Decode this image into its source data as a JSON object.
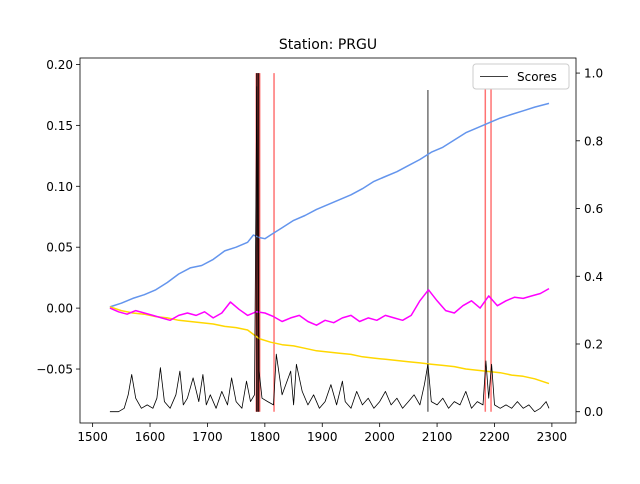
{
  "chart_data": {
    "type": "line",
    "title": "Station: PRGU",
    "xlabel": "",
    "ylabel": "",
    "xlim": [
      1478,
      2342
    ],
    "ylim": [
      -0.0943,
      0.2053
    ],
    "y2lim": [
      -0.0333,
      1.0445
    ],
    "x_ticks": [
      1500,
      1600,
      1700,
      1800,
      1900,
      2000,
      2100,
      2200,
      2300
    ],
    "x_tick_labels": [
      "1500",
      "1600",
      "1700",
      "1800",
      "1900",
      "2000",
      "2100",
      "2200",
      "2300"
    ],
    "y_ticks": [
      -0.05,
      0.0,
      0.05,
      0.1,
      0.15,
      0.2
    ],
    "y_tick_labels": [
      "−0.05",
      "0.00",
      "0.05",
      "0.10",
      "0.15",
      "0.20"
    ],
    "y2_ticks": [
      0.0,
      0.2,
      0.4,
      0.6,
      0.8,
      1.0
    ],
    "y2_tick_labels": [
      "0.0",
      "0.2",
      "0.4",
      "0.6",
      "0.8",
      "1.0"
    ],
    "grid": false,
    "legend": {
      "placement": "top-right",
      "entries": [
        {
          "label": "Scores",
          "color": "#000000"
        }
      ]
    },
    "series": [
      {
        "color": "#6495ed",
        "axis": "left",
        "x": [
          1530,
          1550,
          1570,
          1590,
          1610,
          1630,
          1650,
          1670,
          1690,
          1710,
          1730,
          1750,
          1770,
          1780,
          1790,
          1800,
          1810,
          1830,
          1850,
          1870,
          1890,
          1910,
          1930,
          1950,
          1970,
          1990,
          2010,
          2030,
          2050,
          2070,
          2090,
          2110,
          2130,
          2150,
          2170,
          2190,
          2210,
          2230,
          2250,
          2270,
          2295
        ],
        "y": [
          0.001,
          0.004,
          0.008,
          0.011,
          0.015,
          0.021,
          0.028,
          0.033,
          0.035,
          0.04,
          0.047,
          0.05,
          0.054,
          0.06,
          0.058,
          0.057,
          0.06,
          0.066,
          0.072,
          0.076,
          0.081,
          0.085,
          0.089,
          0.093,
          0.098,
          0.104,
          0.108,
          0.112,
          0.117,
          0.122,
          0.128,
          0.132,
          0.138,
          0.144,
          0.148,
          0.152,
          0.156,
          0.159,
          0.162,
          0.165,
          0.168
        ]
      },
      {
        "color": "#ffd700",
        "axis": "left",
        "x": [
          1530,
          1550,
          1570,
          1590,
          1610,
          1630,
          1650,
          1670,
          1690,
          1710,
          1730,
          1750,
          1770,
          1790,
          1810,
          1830,
          1850,
          1870,
          1890,
          1910,
          1930,
          1950,
          1970,
          1990,
          2010,
          2030,
          2050,
          2070,
          2090,
          2110,
          2130,
          2150,
          2170,
          2190,
          2210,
          2230,
          2250,
          2270,
          2295
        ],
        "y": [
          0.001,
          -0.002,
          -0.004,
          -0.005,
          -0.007,
          -0.008,
          -0.01,
          -0.011,
          -0.012,
          -0.013,
          -0.015,
          -0.016,
          -0.018,
          -0.025,
          -0.028,
          -0.03,
          -0.031,
          -0.033,
          -0.035,
          -0.036,
          -0.037,
          -0.038,
          -0.04,
          -0.041,
          -0.042,
          -0.043,
          -0.044,
          -0.045,
          -0.046,
          -0.047,
          -0.048,
          -0.05,
          -0.051,
          -0.052,
          -0.053,
          -0.055,
          -0.056,
          -0.058,
          -0.062
        ]
      },
      {
        "color": "#ff00ff",
        "axis": "left",
        "x": [
          1530,
          1545,
          1560,
          1575,
          1590,
          1605,
          1620,
          1635,
          1650,
          1665,
          1680,
          1695,
          1710,
          1725,
          1740,
          1755,
          1770,
          1785,
          1800,
          1815,
          1830,
          1845,
          1860,
          1875,
          1890,
          1905,
          1920,
          1935,
          1950,
          1965,
          1980,
          1995,
          2010,
          2025,
          2040,
          2055,
          2070,
          2085,
          2100,
          2115,
          2130,
          2145,
          2160,
          2175,
          2190,
          2205,
          2220,
          2235,
          2250,
          2265,
          2280,
          2295
        ],
        "y": [
          0.0,
          -0.003,
          -0.005,
          -0.002,
          -0.004,
          -0.006,
          -0.008,
          -0.01,
          -0.006,
          -0.004,
          -0.006,
          -0.003,
          -0.008,
          -0.004,
          0.005,
          -0.001,
          -0.006,
          -0.003,
          -0.004,
          -0.007,
          -0.011,
          -0.008,
          -0.006,
          -0.011,
          -0.014,
          -0.01,
          -0.012,
          -0.008,
          -0.006,
          -0.011,
          -0.008,
          -0.01,
          -0.006,
          -0.008,
          -0.01,
          -0.006,
          0.006,
          0.015,
          0.006,
          -0.002,
          -0.004,
          0.002,
          0.006,
          0.0,
          0.01,
          0.002,
          0.006,
          0.009,
          0.008,
          0.01,
          0.012,
          0.016
        ]
      },
      {
        "name": "Scores",
        "color": "#000000",
        "axis": "right",
        "x": [
          1530,
          1545,
          1555,
          1562,
          1568,
          1575,
          1585,
          1595,
          1605,
          1612,
          1618,
          1625,
          1635,
          1645,
          1652,
          1658,
          1665,
          1675,
          1685,
          1692,
          1698,
          1705,
          1715,
          1725,
          1735,
          1742,
          1750,
          1760,
          1768,
          1775,
          1782,
          1786,
          1790,
          1795,
          1805,
          1815,
          1820,
          1830,
          1845,
          1850,
          1855,
          1865,
          1875,
          1885,
          1895,
          1905,
          1915,
          1925,
          1935,
          1940,
          1950,
          1960,
          1970,
          1980,
          1990,
          2000,
          2010,
          2020,
          2030,
          2040,
          2050,
          2060,
          2070,
          2078,
          2084,
          2090,
          2100,
          2110,
          2120,
          2130,
          2140,
          2150,
          2160,
          2170,
          2180,
          2185,
          2190,
          2195,
          2200,
          2210,
          2220,
          2230,
          2240,
          2250,
          2260,
          2270,
          2280,
          2290,
          2295
        ],
        "y": [
          0.0,
          0.0,
          0.01,
          0.05,
          0.11,
          0.04,
          0.01,
          0.02,
          0.01,
          0.04,
          0.13,
          0.03,
          0.01,
          0.05,
          0.12,
          0.02,
          0.04,
          0.1,
          0.03,
          0.11,
          0.02,
          0.05,
          0.01,
          0.06,
          0.02,
          0.1,
          0.03,
          0.01,
          0.09,
          0.03,
          0.05,
          0.96,
          0.12,
          0.04,
          0.03,
          0.02,
          0.17,
          0.05,
          0.12,
          0.02,
          0.14,
          0.06,
          0.02,
          0.05,
          0.01,
          0.03,
          0.08,
          0.02,
          0.09,
          0.03,
          0.01,
          0.06,
          0.02,
          0.04,
          0.01,
          0.03,
          0.06,
          0.02,
          0.04,
          0.01,
          0.03,
          0.05,
          0.02,
          0.08,
          0.14,
          0.03,
          0.02,
          0.04,
          0.01,
          0.03,
          0.02,
          0.06,
          0.01,
          0.03,
          0.02,
          0.15,
          0.04,
          0.14,
          0.02,
          0.01,
          0.02,
          0.01,
          0.03,
          0.01,
          0.02,
          0.0,
          0.01,
          0.03,
          0.01
        ]
      }
    ],
    "vlines": [
      {
        "x": 1785,
        "color": "#ff0000",
        "opacity": 0.55
      },
      {
        "x": 1787,
        "color": "#ff0000",
        "opacity": 0.55
      },
      {
        "x": 1789,
        "color": "#ff0000",
        "opacity": 0.55
      },
      {
        "x": 1791,
        "color": "#ff0000",
        "opacity": 0.55
      },
      {
        "x": 1816,
        "color": "#ff0000",
        "opacity": 0.55
      },
      {
        "x": 2184,
        "color": "#ff0000",
        "opacity": 0.55
      },
      {
        "x": 2194,
        "color": "#ff0000",
        "opacity": 0.55
      },
      {
        "x": 1786,
        "color": "#000000",
        "opacity": 0.8
      },
      {
        "x": 1789,
        "color": "#000000",
        "opacity": 0.8
      },
      {
        "x": 2084,
        "color": "#000000",
        "opacity": 0.55
      }
    ]
  }
}
